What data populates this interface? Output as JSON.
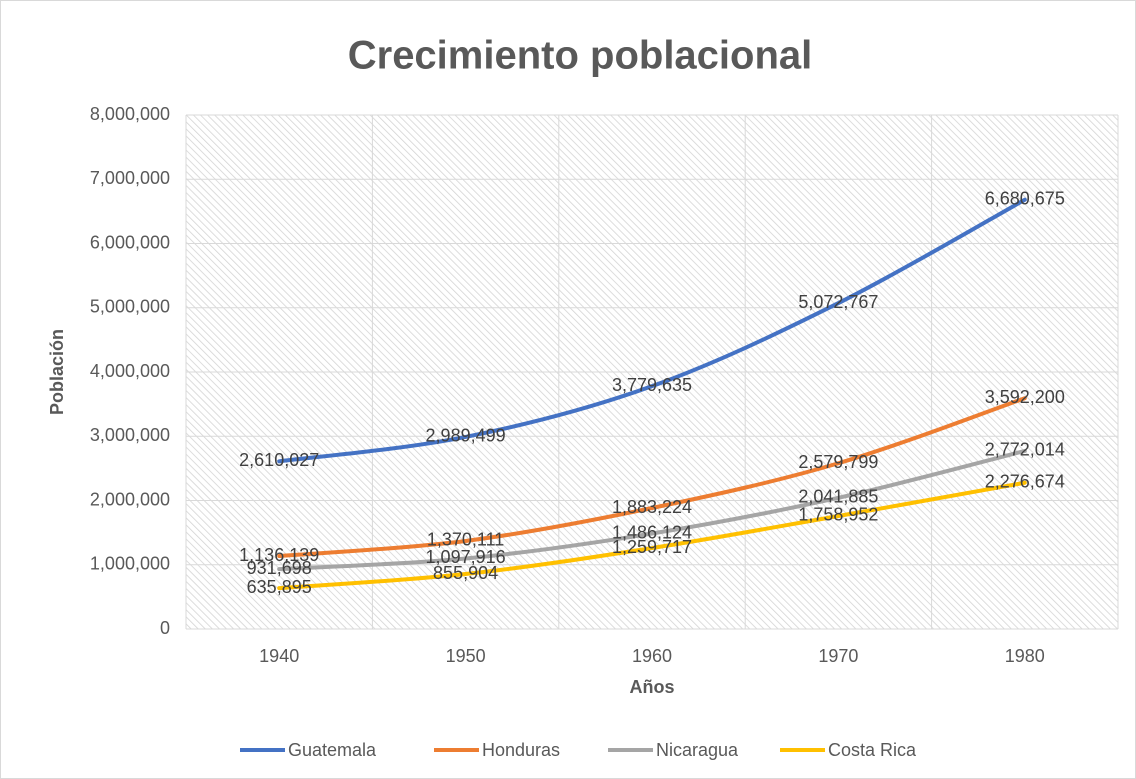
{
  "chart_data": {
    "type": "line",
    "title": "Crecimiento poblacional",
    "x_label": "Años",
    "y_label": "Población",
    "categories": [
      "1940",
      "1950",
      "1960",
      "1970",
      "1980"
    ],
    "series": [
      {
        "name": "Guatemala",
        "color": "#4472c4",
        "values": [
          2610027,
          2989499,
          3779635,
          5072767,
          6680675
        ],
        "value_labels": [
          "2,610,027",
          "2,989,499",
          "3,779,635",
          "5,072,767",
          "6,680,675"
        ]
      },
      {
        "name": "Honduras",
        "color": "#ed7d31",
        "values": [
          1136139,
          1370111,
          1883224,
          2579799,
          3592200
        ],
        "value_labels": [
          "1,136,139",
          "1,370,111",
          "1,883,224",
          "2,579,799",
          "3,592,200"
        ]
      },
      {
        "name": "Nicaragua",
        "color": "#a5a5a5",
        "values": [
          931698,
          1097916,
          1486124,
          2041885,
          2772014
        ],
        "value_labels": [
          "931,698",
          "1,097,916",
          "1,486,124",
          "2,041,885",
          "2,772,014"
        ]
      },
      {
        "name": "Costa Rica",
        "color": "#ffc000",
        "values": [
          635895,
          855904,
          1259717,
          1758952,
          2276674
        ],
        "value_labels": [
          "635,895",
          "855,904",
          "1,259,717",
          "1,758,952",
          "2,276,674"
        ]
      }
    ],
    "ylim": [
      0,
      8000000
    ],
    "yticks": [
      0,
      {
        "value": 1000000,
        "label": "1,000,000"
      },
      {
        "value": 2000000,
        "label": "2,000,000"
      },
      {
        "value": 3000000,
        "label": "3,000,000"
      },
      {
        "value": 4000000,
        "label": "4,000,000"
      },
      {
        "value": 5000000,
        "label": "5,000,000"
      },
      {
        "value": 6000000,
        "label": "6,000,000"
      },
      {
        "value": 7000000,
        "label": "7,000,000"
      },
      {
        "value": 8000000,
        "label": "8,000,000"
      }
    ],
    "grid": true,
    "smooth": true,
    "legend": "bottom"
  }
}
